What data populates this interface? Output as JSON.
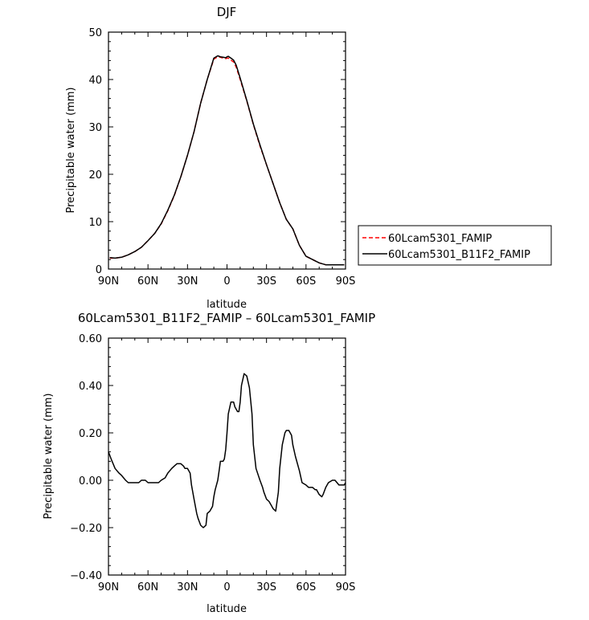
{
  "chart_data": [
    {
      "type": "line",
      "title": "DJF",
      "xlabel": "latitude",
      "ylabel": "Precipitable water (mm)",
      "xlim": [
        -90,
        90
      ],
      "ylim": [
        0,
        50
      ],
      "x_ticks": [
        -90,
        -60,
        -30,
        0,
        30,
        60,
        90
      ],
      "x_tick_labels": [
        "90N",
        "60N",
        "30N",
        "0",
        "30S",
        "60S",
        "90S"
      ],
      "y_ticks": [
        0,
        10,
        20,
        30,
        40,
        50
      ],
      "y_tick_labels": [
        "0",
        "10",
        "20",
        "30",
        "40",
        "50"
      ],
      "legend_position": "right",
      "series": [
        {
          "name": "60Lcam5301_FAMIP",
          "color": "#ff0000",
          "dash": "dashed",
          "x": [
            -89,
            -85,
            -80,
            -75,
            -70,
            -65,
            -60,
            -55,
            -50,
            -45,
            -40,
            -35,
            -30,
            -25,
            -20,
            -15,
            -10,
            -7,
            -5,
            -3,
            -1,
            0,
            1,
            3,
            5,
            7,
            10,
            15,
            20,
            25,
            30,
            35,
            40,
            45,
            50,
            55,
            60,
            65,
            70,
            75,
            80,
            85,
            89
          ],
          "y": [
            2.3,
            2.3,
            2.5,
            3.0,
            3.7,
            4.6,
            6.0,
            7.5,
            9.5,
            12.3,
            15.5,
            19.5,
            24.0,
            29.0,
            35.0,
            40.0,
            44.3,
            44.8,
            44.7,
            44.5,
            44.4,
            44.5,
            44.5,
            44.1,
            43.7,
            42.6,
            40.0,
            35.5,
            30.5,
            26.0,
            22.0,
            18.0,
            14.0,
            10.5,
            8.5,
            5.0,
            2.7,
            2.0,
            1.3,
            0.9,
            0.9,
            0.9,
            0.9
          ]
        },
        {
          "name": "60Lcam5301_B11F2_FAMIP",
          "color": "#000000",
          "dash": "solid",
          "x": [
            -89,
            -85,
            -80,
            -75,
            -70,
            -65,
            -60,
            -55,
            -50,
            -45,
            -40,
            -35,
            -30,
            -25,
            -20,
            -15,
            -10,
            -7,
            -5,
            -3,
            -1,
            0,
            1,
            3,
            5,
            7,
            10,
            15,
            20,
            25,
            30,
            35,
            40,
            45,
            50,
            55,
            60,
            65,
            70,
            75,
            80,
            85,
            89
          ],
          "y": [
            2.4,
            2.3,
            2.5,
            3.0,
            3.7,
            4.6,
            6.0,
            7.5,
            9.6,
            12.4,
            15.6,
            19.5,
            24.0,
            29.0,
            35.0,
            40.0,
            44.5,
            45.0,
            44.8,
            44.7,
            44.6,
            44.8,
            44.9,
            44.5,
            44.1,
            43.0,
            40.3,
            35.6,
            30.6,
            26.2,
            22.0,
            18.0,
            14.0,
            10.5,
            8.5,
            5.0,
            2.7,
            2.0,
            1.3,
            0.9,
            0.9,
            0.9,
            0.9
          ]
        }
      ]
    },
    {
      "type": "line",
      "title": "60Lcam5301_B11F2_FAMIP – 60Lcam5301_FAMIP",
      "xlabel": "latitude",
      "ylabel": "Precipitable water (mm)",
      "xlim": [
        -90,
        90
      ],
      "ylim": [
        -0.4,
        0.6
      ],
      "x_ticks": [
        -90,
        -60,
        -30,
        0,
        30,
        60,
        90
      ],
      "x_tick_labels": [
        "90N",
        "60N",
        "30N",
        "0",
        "30S",
        "60S",
        "90S"
      ],
      "y_ticks": [
        -0.4,
        -0.2,
        0,
        0.2,
        0.4,
        0.6
      ],
      "y_tick_labels": [
        "−0.40",
        "−0.20",
        "0.00",
        "0.20",
        "0.40",
        "0.60"
      ],
      "series": [
        {
          "color": "#000000",
          "dash": "solid",
          "x": [
            -90,
            -88,
            -85,
            -82,
            -80,
            -77,
            -75,
            -72,
            -70,
            -67,
            -65,
            -62,
            -60,
            -57,
            -55,
            -52,
            -50,
            -47,
            -45,
            -42,
            -40,
            -38,
            -37,
            -35,
            -33,
            -32,
            -30,
            -28,
            -27,
            -25,
            -23,
            -22,
            -20,
            -18,
            -16,
            -15,
            -13,
            -11,
            -10,
            -9,
            -7,
            -6,
            -5,
            -3,
            -2,
            -1,
            0,
            1,
            3,
            5,
            6,
            8,
            9,
            10,
            11,
            13,
            15,
            17,
            19,
            20,
            22,
            25,
            27,
            28,
            30,
            32,
            33,
            35,
            37,
            39,
            40,
            42,
            44,
            45,
            47,
            49,
            50,
            52,
            55,
            57,
            60,
            62,
            65,
            67,
            68,
            70,
            72,
            73,
            75,
            77,
            80,
            82,
            85,
            87,
            89,
            90
          ],
          "y": [
            0.12,
            0.09,
            0.05,
            0.03,
            0.02,
            0.0,
            -0.01,
            -0.01,
            -0.01,
            -0.01,
            0.0,
            0.0,
            -0.01,
            -0.01,
            -0.01,
            -0.01,
            0.0,
            0.01,
            0.03,
            0.05,
            0.06,
            0.07,
            0.07,
            0.07,
            0.06,
            0.05,
            0.05,
            0.03,
            -0.02,
            -0.08,
            -0.14,
            -0.16,
            -0.19,
            -0.2,
            -0.19,
            -0.14,
            -0.13,
            -0.11,
            -0.07,
            -0.04,
            0.0,
            0.04,
            0.08,
            0.08,
            0.09,
            0.13,
            0.2,
            0.28,
            0.33,
            0.33,
            0.31,
            0.29,
            0.29,
            0.33,
            0.4,
            0.45,
            0.44,
            0.39,
            0.28,
            0.15,
            0.05,
            0.0,
            -0.03,
            -0.05,
            -0.08,
            -0.09,
            -0.1,
            -0.12,
            -0.13,
            -0.05,
            0.05,
            0.15,
            0.2,
            0.21,
            0.21,
            0.19,
            0.15,
            0.1,
            0.04,
            -0.01,
            -0.02,
            -0.03,
            -0.03,
            -0.04,
            -0.04,
            -0.06,
            -0.07,
            -0.06,
            -0.03,
            -0.01,
            0.0,
            0.0,
            -0.02,
            -0.02,
            -0.02,
            -0.01
          ]
        }
      ]
    }
  ]
}
